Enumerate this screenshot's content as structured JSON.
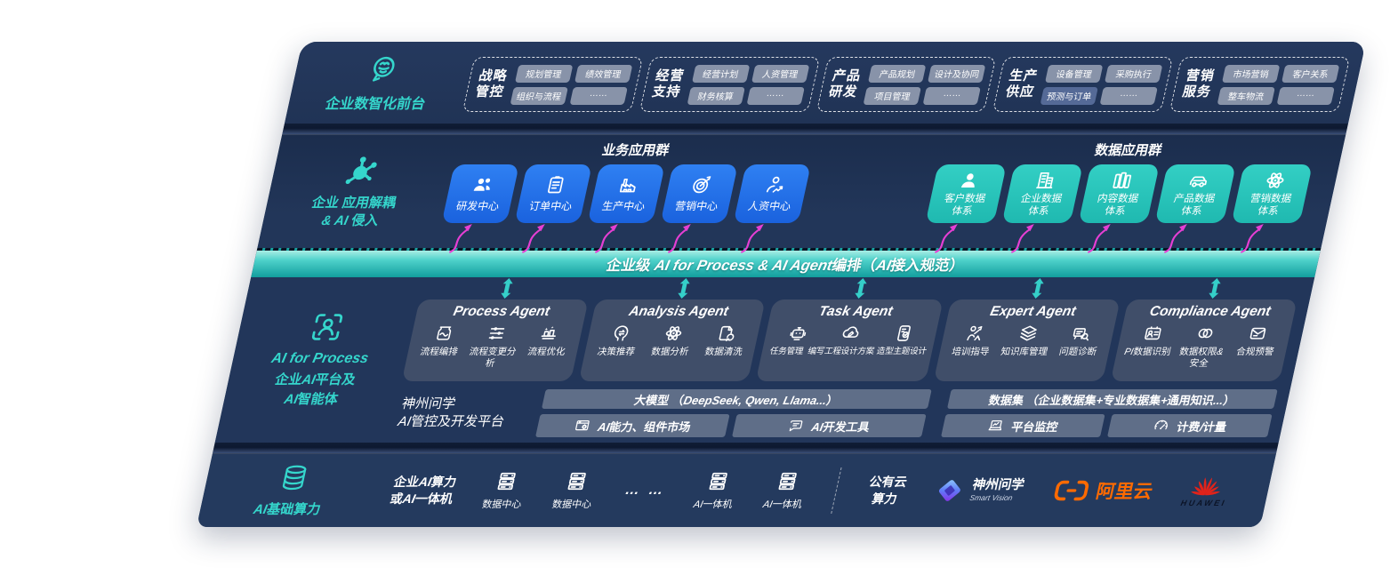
{
  "front_office": {
    "label": "企业数智化前台",
    "icon": "brain-head",
    "groups": [
      {
        "title": "战略管控",
        "chips": [
          "规划管理",
          "绩效管理",
          "组织与流程",
          "……"
        ]
      },
      {
        "title": "经营支持",
        "chips": [
          "经营计划",
          "人资管理",
          "财务核算",
          "……"
        ]
      },
      {
        "title": "产品研发",
        "chips": [
          "产品规划",
          "设计及协同",
          "项目管理",
          "……"
        ]
      },
      {
        "title": "生产供应",
        "chips": [
          "设备管理",
          "采购执行",
          "预测与订单",
          "……"
        ]
      },
      {
        "title": "营销服务",
        "chips": [
          "市场营销",
          "客户关系",
          "整车物流",
          "……"
        ]
      }
    ]
  },
  "app_layer": {
    "label_line1": "企业 应用解耦",
    "label_line2": "& AI 侵入",
    "icon": "molecule",
    "business_group": {
      "title": "业务应用群",
      "boxes": [
        {
          "label": "研发中心",
          "icon": "people"
        },
        {
          "label": "订单中心",
          "icon": "clipboard"
        },
        {
          "label": "生产中心",
          "icon": "factory"
        },
        {
          "label": "营销中心",
          "icon": "target"
        },
        {
          "label": "人资中心",
          "icon": "person-chart"
        }
      ]
    },
    "data_group": {
      "title": "数据应用群",
      "boxes": [
        {
          "label": "客户数据体系",
          "icon": "person"
        },
        {
          "label": "企业数据体系",
          "icon": "building"
        },
        {
          "label": "内容数据体系",
          "icon": "books"
        },
        {
          "label": "产品数据体系",
          "icon": "car"
        },
        {
          "label": "营销数据体系",
          "icon": "atom"
        }
      ]
    }
  },
  "orchestration_band": {
    "label": "企业级 AI for Process & AI Agent编排（AI接入规范）"
  },
  "ai_platform": {
    "label_line1": "AI for Process",
    "label_line2": "企业AI平台及",
    "label_line3": "AI智能体",
    "icon": "scan-person",
    "agents": [
      {
        "title": "Process Agent",
        "items": [
          {
            "label": "流程编排",
            "icon": "flow-jar"
          },
          {
            "label": "流程变更分析",
            "icon": "sliders"
          },
          {
            "label": "流程优化",
            "icon": "optimize"
          }
        ]
      },
      {
        "title": "Analysis Agent",
        "items": [
          {
            "label": "决策推荐",
            "icon": "head-arrow"
          },
          {
            "label": "数据分析",
            "icon": "atom"
          },
          {
            "label": "数据清洗",
            "icon": "doc-refresh"
          }
        ]
      },
      {
        "title": "Task Agent",
        "items": [
          {
            "label": "任务管理",
            "icon": "robot"
          },
          {
            "label": "编写工程设计方案",
            "icon": "cloud-pen"
          },
          {
            "label": "造型主题设计",
            "icon": "tablet-check"
          }
        ]
      },
      {
        "title": "Expert Agent",
        "items": [
          {
            "label": "培训指导",
            "icon": "trainer"
          },
          {
            "label": "知识库管理",
            "icon": "layers"
          },
          {
            "label": "问题诊断",
            "icon": "machine-search"
          }
        ]
      },
      {
        "title": "Compliance Agent",
        "items": [
          {
            "label": "PI数据识别",
            "icon": "id-card"
          },
          {
            "label": "数据权限&安全",
            "icon": "rings"
          },
          {
            "label": "合规预警",
            "icon": "mail"
          }
        ]
      }
    ],
    "platform": {
      "name_line1": "神州问学",
      "name_line2": "AI管控及开发平台",
      "model_bar": "大模型 （DeepSeek, Qwen, Llama...）",
      "dataset_bar": "数据集 （企业数据集+专业数据集+通用知识...）",
      "cells": [
        {
          "label": "AI能力、组件市场",
          "icon": "window-gear"
        },
        {
          "label": "AI开发工具",
          "icon": "chat-pen"
        },
        {
          "label": "平台监控",
          "icon": "laptop-chart"
        },
        {
          "label": "计费/计量",
          "icon": "gauge"
        }
      ]
    }
  },
  "infra": {
    "label": "AI基础算力",
    "icon": "database",
    "compute_label_line1": "企业AI算力",
    "compute_label_line2": "或AI一体机",
    "nodes": [
      {
        "label": "数据中心",
        "icon": "server"
      },
      {
        "label": "数据中心",
        "icon": "server"
      }
    ],
    "dots": "… …",
    "nodes2": [
      {
        "label": "AI一体机",
        "icon": "server"
      },
      {
        "label": "AI一体机",
        "icon": "server"
      }
    ],
    "cloud_label_line1": "公有云",
    "cloud_label_line2": "算力",
    "partners": [
      {
        "name": "神州问学",
        "sub": "Smart Vision",
        "icon": "sv-logo"
      },
      {
        "name": "阿里云",
        "icon": "ali-logo"
      },
      {
        "name": "HUAWEI",
        "icon": "huawei-logo"
      }
    ]
  },
  "colors": {
    "accent_teal": "#2FD2C8",
    "accent_blue": "#1B6FE9",
    "box_teal": "#2AC6BC",
    "arrow_magenta": "#E63FD4",
    "ali_orange": "#FF6A00",
    "huawei_red": "#E2231A",
    "panel_navy": "#213456"
  }
}
